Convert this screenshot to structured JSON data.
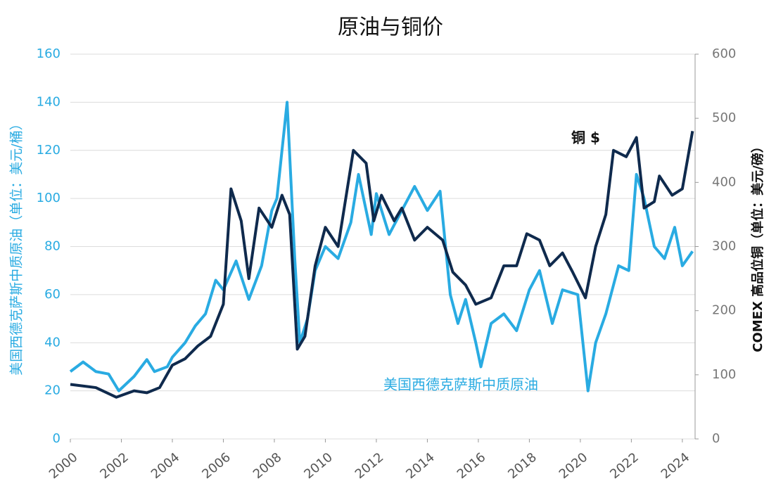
{
  "chart_data": {
    "type": "line",
    "title": "原油与铜价",
    "y_label": "美国西德克萨斯中质原油（单位：美元/桶）",
    "y2_label": "COMEX 高品位铜（单位：美元/磅）",
    "xlim": [
      2000,
      2024.5
    ],
    "xticks": [
      2000,
      2002,
      2004,
      2006,
      2008,
      2010,
      2012,
      2014,
      2016,
      2018,
      2020,
      2022,
      2024
    ],
    "ylim": [
      0,
      160
    ],
    "yticks": [
      0,
      20,
      40,
      60,
      80,
      100,
      120,
      140,
      160
    ],
    "y2lim": [
      0,
      600
    ],
    "y2ticks": [
      0,
      100,
      200,
      300,
      400,
      500,
      600
    ],
    "grid": true,
    "series": [
      {
        "name": "美国西德克萨斯中质原油",
        "color": "#29abe2",
        "x": [
          2000,
          2000.5,
          2001,
          2001.5,
          2001.9,
          2002.5,
          2003,
          2003.3,
          2003.8,
          2004,
          2004.5,
          2004.9,
          2005.3,
          2005.7,
          2006,
          2006.5,
          2007,
          2007.5,
          2007.9,
          2008.1,
          2008.5,
          2008.8,
          2009,
          2009.3,
          2009.6,
          2010,
          2010.5,
          2011,
          2011.3,
          2011.8,
          2012,
          2012.5,
          2013,
          2013.5,
          2014,
          2014.5,
          2014.9,
          2015.2,
          2015.5,
          2015.9,
          2016.1,
          2016.5,
          2017,
          2017.5,
          2018,
          2018.4,
          2018.9,
          2019.3,
          2019.9,
          2020.3,
          2020.6,
          2021,
          2021.5,
          2021.9,
          2022.2,
          2022.5,
          2022.9,
          2023.3,
          2023.7,
          2024,
          2024.4
        ],
        "values": [
          28,
          32,
          28,
          27,
          20,
          26,
          33,
          28,
          30,
          34,
          40,
          47,
          52,
          66,
          62,
          74,
          58,
          72,
          95,
          100,
          140,
          75,
          40,
          50,
          70,
          80,
          75,
          90,
          110,
          85,
          102,
          85,
          95,
          105,
          95,
          103,
          60,
          48,
          58,
          40,
          30,
          48,
          52,
          45,
          62,
          70,
          48,
          62,
          60,
          20,
          40,
          52,
          72,
          70,
          110,
          100,
          80,
          75,
          88,
          72,
          78
        ]
      },
      {
        "name": "铜 $",
        "color": "#0f2a4d",
        "axis": "y2",
        "x": [
          2000,
          2001,
          2001.8,
          2002.5,
          2003,
          2003.5,
          2004,
          2004.5,
          2005,
          2005.5,
          2006,
          2006.3,
          2006.7,
          2007,
          2007.4,
          2007.9,
          2008.3,
          2008.6,
          2008.9,
          2009.2,
          2009.6,
          2010,
          2010.5,
          2011.1,
          2011.6,
          2011.9,
          2012.2,
          2012.7,
          2013,
          2013.5,
          2014,
          2014.6,
          2015,
          2015.5,
          2015.9,
          2016.5,
          2017,
          2017.5,
          2017.9,
          2018.4,
          2018.8,
          2019.3,
          2019.7,
          2020.2,
          2020.6,
          2021,
          2021.3,
          2021.8,
          2022.2,
          2022.5,
          2022.9,
          2023.1,
          2023.6,
          2024,
          2024.4
        ],
        "values": [
          85,
          80,
          65,
          75,
          72,
          80,
          115,
          125,
          145,
          160,
          210,
          390,
          340,
          250,
          360,
          330,
          380,
          350,
          140,
          160,
          270,
          330,
          300,
          450,
          430,
          340,
          380,
          340,
          360,
          310,
          330,
          310,
          260,
          240,
          210,
          220,
          270,
          270,
          320,
          310,
          270,
          290,
          260,
          220,
          300,
          350,
          450,
          440,
          470,
          360,
          370,
          410,
          380,
          390,
          480
        ]
      }
    ]
  }
}
